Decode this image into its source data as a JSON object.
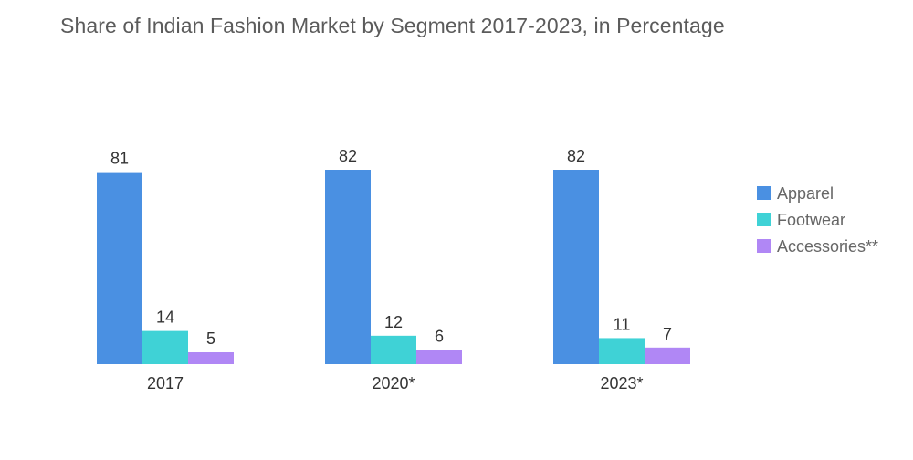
{
  "chart_data": {
    "type": "bar",
    "title": "Share of Indian Fashion Market by Segment 2017-2023, in Percentage",
    "categories": [
      "2017",
      "2020*",
      "2023*"
    ],
    "series": [
      {
        "name": "Apparel",
        "color": "#4a90e2",
        "values": [
          81,
          82,
          82
        ]
      },
      {
        "name": "Footwear",
        "color": "#3fd2d6",
        "values": [
          14,
          12,
          11
        ]
      },
      {
        "name": "Accessories**",
        "color": "#b087f5",
        "values": [
          5,
          6,
          7
        ]
      }
    ],
    "xlabel": "",
    "ylabel": "",
    "ylim": [
      0,
      82
    ],
    "grid": false,
    "legend_position": "right"
  }
}
